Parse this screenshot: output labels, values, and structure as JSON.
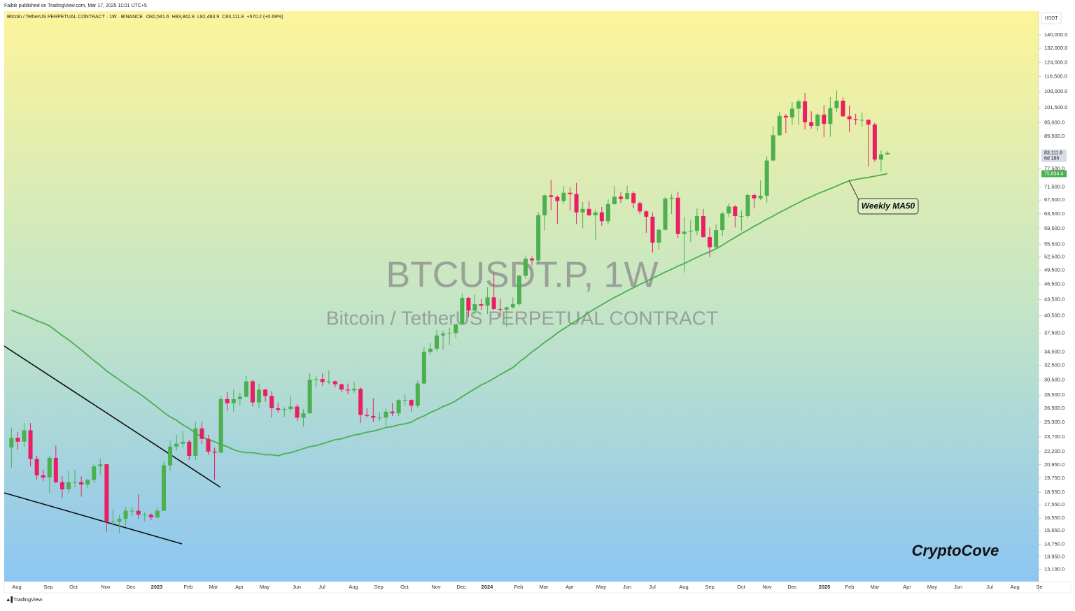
{
  "header": "Faibik published on TradingView.com, Mar 17, 2025 11:01 UTC+5",
  "footer": "TradingView",
  "chart_data": {
    "type": "candlestick",
    "symbol_line": "Bitcoin / TetherUS PERPETUAL CONTRACT · 1W · BINANCE",
    "legend_ohlc": [
      "O82,541.6",
      "H83,842.8",
      "L82,483.9",
      "C83,111.8",
      "+570.2 (+0.69%)"
    ],
    "watermark": "BTCUSDT.P, 1W",
    "watermark_subtitle": "Bitcoin / TetherUS PERPETUAL CONTRACT",
    "currency": "USDT",
    "signature": "CryptoCove",
    "up_color": "#4caf50",
    "down_color": "#e91e63",
    "log_scale": true,
    "grid": false,
    "open": [
      22600,
      23600,
      23200,
      24400,
      21500,
      20000,
      19800,
      21600,
      19400,
      18800,
      19400,
      19400,
      19200,
      19600,
      20800,
      21000,
      16300,
      16300,
      16500,
      17100,
      17100,
      16800,
      16800,
      16600,
      17100,
      20900,
      22700,
      23000,
      23200,
      21800,
      24600,
      23500,
      22200,
      22100,
      28000,
      27500,
      28000,
      28300,
      30300,
      27600,
      29200,
      28400,
      26900,
      26700,
      26800,
      27100,
      25800,
      26300,
      30500,
      30600,
      30200,
      30300,
      29900,
      29200,
      29100,
      29300,
      26100,
      26000,
      25800,
      25800,
      26500,
      26300,
      27900,
      27900,
      27200,
      30000,
      34500,
      35000,
      37100,
      37400,
      37500,
      39000,
      43800,
      41400,
      42600,
      42300,
      43900,
      41700,
      41600,
      42000,
      42600,
      48300,
      52100,
      51700,
      63100,
      68900,
      68400,
      67200,
      69700,
      69300,
      63900,
      64900,
      63100,
      63900,
      61500,
      66300,
      68500,
      67800,
      69600,
      66600,
      64200,
      62700,
      55900,
      59200,
      67900,
      68200,
      58100,
      58700,
      58900,
      62900,
      57300,
      54800,
      59100,
      63600,
      65600,
      62900,
      62900,
      69000,
      68000,
      68800,
      80400,
      89900,
      97900,
      97200,
      101100,
      104400,
      95200,
      93700,
      98400,
      94500,
      101300,
      104700,
      97700,
      96500,
      96100,
      96200,
      94200,
      80700,
      82541.6
    ],
    "high": [
      24700,
      24200,
      25200,
      25200,
      21800,
      20500,
      21800,
      22800,
      19900,
      20400,
      20500,
      19900,
      19700,
      21000,
      21500,
      21000,
      17200,
      16800,
      17400,
      17400,
      18400,
      17000,
      16900,
      17400,
      21300,
      23300,
      23900,
      24300,
      23400,
      25300,
      25300,
      23900,
      22600,
      28400,
      28900,
      29200,
      28800,
      31000,
      30500,
      30000,
      29300,
      29000,
      27600,
      27000,
      28400,
      27400,
      26800,
      31400,
      31000,
      31400,
      31800,
      30400,
      30000,
      30000,
      30200,
      29500,
      26900,
      28100,
      26400,
      26900,
      27500,
      28000,
      28600,
      28000,
      30400,
      35200,
      35900,
      38000,
      37900,
      38400,
      39000,
      44700,
      44000,
      44400,
      43600,
      45900,
      48900,
      43600,
      42200,
      43900,
      48500,
      52800,
      52600,
      64000,
      69200,
      73800,
      68900,
      71800,
      71400,
      72800,
      66900,
      67200,
      64700,
      65500,
      67700,
      71900,
      70000,
      71900,
      70200,
      67000,
      64500,
      63800,
      59500,
      68400,
      69300,
      70000,
      62700,
      61800,
      65000,
      64900,
      59800,
      60700,
      64100,
      66500,
      66000,
      64500,
      69500,
      69500,
      73600,
      81800,
      93500,
      99600,
      98700,
      104000,
      105300,
      108400,
      99900,
      99000,
      102700,
      106400,
      109600,
      106300,
      102500,
      98800,
      99500,
      96500,
      95000,
      84100,
      83842.8
    ],
    "low": [
      20700,
      22400,
      22700,
      20800,
      19600,
      19500,
      18500,
      19300,
      18100,
      18500,
      19000,
      18200,
      18900,
      19300,
      20000,
      15600,
      16000,
      15500,
      16000,
      16700,
      16500,
      16300,
      16400,
      16500,
      17100,
      20400,
      22300,
      22600,
      21400,
      21400,
      23000,
      21900,
      19600,
      22100,
      26600,
      26500,
      27200,
      28200,
      27100,
      26900,
      27700,
      25800,
      26400,
      25900,
      26500,
      25400,
      24800,
      26300,
      29500,
      29700,
      29900,
      29500,
      28900,
      28600,
      28800,
      25200,
      25800,
      25300,
      25400,
      24900,
      26000,
      26000,
      27200,
      26500,
      26900,
      29900,
      34100,
      34600,
      34800,
      35600,
      36700,
      39000,
      40200,
      40600,
      41500,
      40800,
      41500,
      40300,
      38500,
      41800,
      42300,
      47700,
      50600,
      50900,
      59000,
      64500,
      60800,
      66400,
      64500,
      60700,
      59600,
      62800,
      56500,
      60200,
      60700,
      66100,
      66600,
      67600,
      65100,
      63400,
      58400,
      53500,
      54300,
      59000,
      63500,
      57100,
      49000,
      56100,
      57800,
      57200,
      52500,
      54600,
      57500,
      62700,
      59800,
      58900,
      62400,
      65000,
      67500,
      66800,
      80000,
      89400,
      90800,
      94000,
      94200,
      92200,
      92500,
      91500,
      89200,
      89300,
      99500,
      97700,
      91200,
      94100,
      93400,
      78200,
      80000,
      76600,
      82483.9
    ],
    "close": [
      23600,
      23200,
      24400,
      21500,
      20000,
      19800,
      21600,
      19400,
      18800,
      19400,
      19400,
      19200,
      19600,
      20800,
      21000,
      16300,
      16300,
      16500,
      17100,
      17100,
      16800,
      16800,
      16600,
      17100,
      20900,
      22700,
      23000,
      23200,
      21800,
      24600,
      23500,
      22200,
      22100,
      28000,
      27500,
      28000,
      28300,
      30300,
      27600,
      29200,
      28400,
      26900,
      26700,
      26800,
      27100,
      25800,
      26300,
      30500,
      30600,
      30200,
      30300,
      29900,
      29200,
      29100,
      29300,
      26100,
      26000,
      25800,
      25800,
      26500,
      26300,
      27900,
      27900,
      27200,
      30000,
      34500,
      35000,
      37100,
      37400,
      37500,
      39000,
      43800,
      41400,
      42600,
      42300,
      43900,
      41700,
      41600,
      42000,
      42600,
      48300,
      52100,
      51700,
      63100,
      68900,
      68400,
      67200,
      69700,
      69300,
      63900,
      64900,
      63100,
      63900,
      61500,
      66300,
      68500,
      67800,
      69600,
      66600,
      64200,
      62700,
      55900,
      59200,
      67900,
      68200,
      58100,
      58700,
      58900,
      62900,
      57300,
      54800,
      59100,
      63600,
      65600,
      62900,
      62900,
      69000,
      68000,
      68800,
      80400,
      89900,
      97900,
      97200,
      101100,
      104400,
      95200,
      93700,
      98400,
      94500,
      101300,
      104700,
      97700,
      96500,
      96100,
      96200,
      94200,
      80700,
      82541.6,
      83111.8
    ],
    "ma": {
      "label": "Weekly MA50",
      "color": "#4caf50",
      "values": [
        41500,
        41000,
        40600,
        40100,
        39600,
        39200,
        38700,
        37900,
        37100,
        36400,
        35600,
        34800,
        34000,
        33200,
        32500,
        31700,
        31100,
        30500,
        29900,
        29300,
        28800,
        28200,
        27600,
        27000,
        26400,
        25900,
        25500,
        25000,
        24600,
        24100,
        23700,
        23400,
        23200,
        22900,
        22700,
        22400,
        22200,
        22100,
        22100,
        22000,
        21900,
        21900,
        21800,
        22000,
        22100,
        22300,
        22500,
        22700,
        22800,
        23000,
        23200,
        23400,
        23500,
        23700,
        23900,
        24000,
        24200,
        24300,
        24500,
        24700,
        24800,
        25000,
        25100,
        25300,
        25700,
        26000,
        26400,
        26700,
        27100,
        27400,
        27800,
        28300,
        28800,
        29300,
        29800,
        30200,
        30700,
        31200,
        31700,
        32200,
        33000,
        33700,
        34500,
        35200,
        36000,
        36700,
        37500,
        38200,
        38900,
        39600,
        40300,
        41100,
        41800,
        42500,
        43200,
        43900,
        44500,
        45200,
        45800,
        46500,
        47100,
        47800,
        48400,
        49100,
        49700,
        50400,
        51000,
        51700,
        52400,
        53100,
        53700,
        54400,
        55300,
        56300,
        57200,
        58200,
        59100,
        60100,
        61000,
        62000,
        62900,
        63900,
        64800,
        65800,
        66700,
        67700,
        68500,
        69400,
        70200,
        71000,
        71800,
        72700,
        73500,
        73900,
        74300,
        74600,
        75000,
        75400,
        75834.4
      ]
    },
    "price_tags": [
      {
        "value": 83111.8,
        "label": "83,111.8"
      },
      "6d 18h",
      {
        "value": 75834.4,
        "label": "75,834.4"
      }
    ],
    "ylim": [
      12500,
      155500
    ],
    "yticks": [
      {
        "value": 140000,
        "label": "140,000.0"
      },
      {
        "value": 132000,
        "label": "132,000.0"
      },
      {
        "value": 124000,
        "label": "124,000.0"
      },
      {
        "value": 116500,
        "label": "116,500.0"
      },
      {
        "value": 109000,
        "label": "109,000.0"
      },
      {
        "value": 101500,
        "label": "101,500.0"
      },
      {
        "value": 95000,
        "label": "95,000.0"
      },
      {
        "value": 89500,
        "label": "89,500.0"
      },
      {
        "value": 77500,
        "label": "77,500.0"
      },
      {
        "value": 71500,
        "label": "71,500.0"
      },
      {
        "value": 67500,
        "label": "67,500.0"
      },
      {
        "value": 63500,
        "label": "63,500.0"
      },
      {
        "value": 59500,
        "label": "59,500.0"
      },
      {
        "value": 55500,
        "label": "55,500.0"
      },
      {
        "value": 52500,
        "label": "52,500.0"
      },
      {
        "value": 49500,
        "label": "49,500.0"
      },
      {
        "value": 46500,
        "label": "46,500.0"
      },
      {
        "value": 43500,
        "label": "43,500.0"
      },
      {
        "value": 40500,
        "label": "40,500.0"
      },
      {
        "value": 37500,
        "label": "37,500.0"
      },
      {
        "value": 34500,
        "label": "34,500.0"
      },
      {
        "value": 32500,
        "label": "32,500.0"
      },
      {
        "value": 30500,
        "label": "30,500.0"
      },
      {
        "value": 28500,
        "label": "28,500.0"
      },
      {
        "value": 26900,
        "label": "26,900.0"
      },
      {
        "value": 25300,
        "label": "25,300.0"
      },
      {
        "value": 23700,
        "label": "23,700.0"
      },
      {
        "value": 22200,
        "label": "22,200.0"
      },
      {
        "value": 20950,
        "label": "20,950.0"
      },
      {
        "value": 19750,
        "label": "19,750.0"
      },
      {
        "value": 18550,
        "label": "18,550.0"
      },
      {
        "value": 17550,
        "label": "17,550.0"
      },
      {
        "value": 16550,
        "label": "16,550.0"
      },
      {
        "value": 15650,
        "label": "15,650.0"
      },
      {
        "value": 14750,
        "label": "14,750.0"
      },
      {
        "value": 13950,
        "label": "13,950.0"
      },
      {
        "value": 13190,
        "label": "13,190.0"
      }
    ],
    "xtick_labels": [
      "Aug",
      "Sep",
      "Oct",
      "Nov",
      "Dec",
      "2023",
      "Feb",
      "Mar",
      "Apr",
      "May",
      "Jun",
      "Jul",
      "Aug",
      "Sep",
      "Oct",
      "Nov",
      "Dec",
      "2024",
      "Feb",
      "Mar",
      "Apr",
      "May",
      "Jun",
      "Jul",
      "Aug",
      "Sep",
      "Oct",
      "Nov",
      "Dec",
      "2025",
      "Feb",
      "Mar",
      "Apr",
      "May",
      "Jun",
      "Jul",
      "Aug",
      "Se"
    ]
  }
}
